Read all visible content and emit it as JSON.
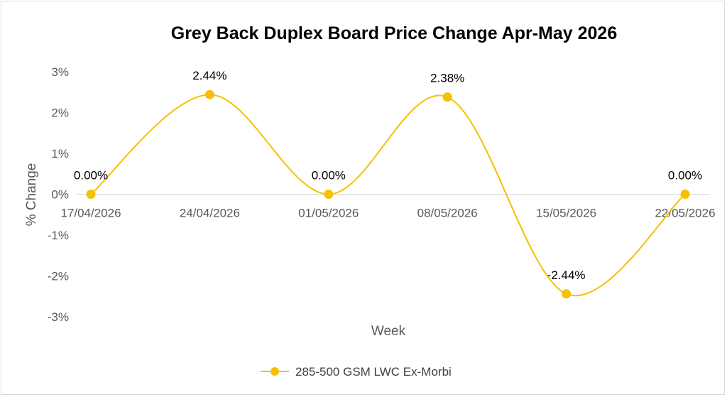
{
  "chart_data": {
    "type": "line",
    "title": "Grey Back Duplex Board Price Change Apr-May 2026",
    "xlabel": "Week",
    "ylabel": "% Change",
    "categories": [
      "17/04/2026",
      "24/04/2026",
      "01/05/2026",
      "08/05/2026",
      "15/05/2026",
      "22/05/2026"
    ],
    "series": [
      {
        "name": "285-500 GSM LWC Ex-Morbi",
        "values": [
          0.0,
          2.44,
          0.0,
          2.38,
          -2.44,
          0.0
        ],
        "labels": [
          "0.00%",
          "2.44%",
          "0.00%",
          "2.38%",
          "-2.44%",
          "0.00%"
        ],
        "color": "#f5c000",
        "smooth": true
      }
    ],
    "ylim": [
      -3,
      3
    ],
    "yticks": [
      3,
      2,
      1,
      0,
      -1,
      -2,
      -3
    ],
    "ytick_labels": [
      "3%",
      "2%",
      "1%",
      "0%",
      "-1%",
      "-2%",
      "-3%"
    ],
    "grid": false,
    "legend": "bottom"
  }
}
